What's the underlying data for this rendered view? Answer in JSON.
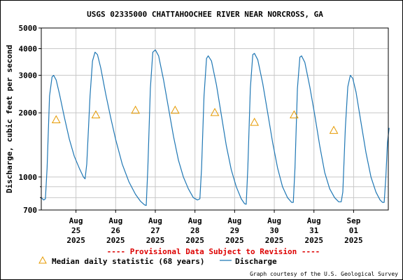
{
  "chart_data": {
    "type": "line",
    "title": "USGS 02335000 CHATTAHOOCHEE RIVER NEAR NORCROSS, GA",
    "ylabel": "Discharge, cubic feet per second",
    "xlabel": "",
    "yscale": "log",
    "ylim": [
      700,
      5000
    ],
    "xlim": [
      "2025-08-24 03:00",
      "2025-09-01 21:00"
    ],
    "grid": true,
    "y_ticks": [
      700,
      1000,
      2000,
      3000,
      4000,
      5000
    ],
    "y_tick_labels": [
      "700",
      "1000",
      "2000",
      "3000",
      "4000",
      "5000"
    ],
    "y_minor_ticks": [
      800,
      900
    ],
    "x_ticks": [
      {
        "date": "2025-08-25",
        "label": [
          "Aug",
          "25",
          "2025"
        ]
      },
      {
        "date": "2025-08-26",
        "label": [
          "Aug",
          "26",
          "2025"
        ]
      },
      {
        "date": "2025-08-27",
        "label": [
          "Aug",
          "27",
          "2025"
        ]
      },
      {
        "date": "2025-08-28",
        "label": [
          "Aug",
          "28",
          "2025"
        ]
      },
      {
        "date": "2025-08-29",
        "label": [
          "Aug",
          "29",
          "2025"
        ]
      },
      {
        "date": "2025-08-30",
        "label": [
          "Aug",
          "30",
          "2025"
        ]
      },
      {
        "date": "2025-08-31",
        "label": [
          "Aug",
          "31",
          "2025"
        ]
      },
      {
        "date": "2025-09-01",
        "label": [
          "Sep",
          "01",
          "2025"
        ]
      }
    ],
    "series": [
      {
        "name": "Discharge",
        "color": "#1f77b4",
        "marker": "line",
        "points": [
          [
            "2025-08-24 03:00",
            800
          ],
          [
            "2025-08-24 04:30",
            780
          ],
          [
            "2025-08-24 05:30",
            790
          ],
          [
            "2025-08-24 06:30",
            1100
          ],
          [
            "2025-08-24 08:00",
            2400
          ],
          [
            "2025-08-24 09:30",
            2950
          ],
          [
            "2025-08-24 10:30",
            3000
          ],
          [
            "2025-08-24 12:00",
            2850
          ],
          [
            "2025-08-24 14:00",
            2450
          ],
          [
            "2025-08-24 17:00",
            1900
          ],
          [
            "2025-08-24 20:00",
            1500
          ],
          [
            "2025-08-24 23:00",
            1250
          ],
          [
            "2025-08-25 02:00",
            1100
          ],
          [
            "2025-08-25 04:30",
            1000
          ],
          [
            "2025-08-25 05:30",
            980
          ],
          [
            "2025-08-25 06:30",
            1150
          ],
          [
            "2025-08-25 08:30",
            2400
          ],
          [
            "2025-08-25 10:00",
            3500
          ],
          [
            "2025-08-25 11:30",
            3850
          ],
          [
            "2025-08-25 13:00",
            3750
          ],
          [
            "2025-08-25 15:00",
            3250
          ],
          [
            "2025-08-25 18:00",
            2450
          ],
          [
            "2025-08-25 21:00",
            1900
          ],
          [
            "2025-08-26 00:00",
            1500
          ],
          [
            "2025-08-26 04:00",
            1150
          ],
          [
            "2025-08-26 08:00",
            950
          ],
          [
            "2025-08-26 12:00",
            830
          ],
          [
            "2025-08-26 15:00",
            770
          ],
          [
            "2025-08-26 17:30",
            740
          ],
          [
            "2025-08-26 18:30",
            735
          ],
          [
            "2025-08-26 19:30",
            1100
          ],
          [
            "2025-08-26 21:00",
            2600
          ],
          [
            "2025-08-26 22:30",
            3850
          ],
          [
            "2025-08-27 00:00",
            3950
          ],
          [
            "2025-08-27 02:00",
            3700
          ],
          [
            "2025-08-27 05:00",
            2850
          ],
          [
            "2025-08-27 08:00",
            2100
          ],
          [
            "2025-08-27 11:00",
            1550
          ],
          [
            "2025-08-27 14:00",
            1200
          ],
          [
            "2025-08-27 17:00",
            1000
          ],
          [
            "2025-08-27 20:00",
            880
          ],
          [
            "2025-08-27 23:00",
            800
          ],
          [
            "2025-08-28 01:30",
            780
          ],
          [
            "2025-08-28 03:00",
            790
          ],
          [
            "2025-08-28 04:00",
            1100
          ],
          [
            "2025-08-28 05:30",
            2400
          ],
          [
            "2025-08-28 07:00",
            3600
          ],
          [
            "2025-08-28 08:00",
            3700
          ],
          [
            "2025-08-28 10:00",
            3500
          ],
          [
            "2025-08-28 13:00",
            2700
          ],
          [
            "2025-08-28 16:00",
            1950
          ],
          [
            "2025-08-28 19:00",
            1400
          ],
          [
            "2025-08-28 22:00",
            1080
          ],
          [
            "2025-08-29 01:00",
            900
          ],
          [
            "2025-08-29 04:00",
            790
          ],
          [
            "2025-08-29 06:00",
            750
          ],
          [
            "2025-08-29 07:00",
            745
          ],
          [
            "2025-08-29 08:00",
            1100
          ],
          [
            "2025-08-29 09:30",
            2600
          ],
          [
            "2025-08-29 11:00",
            3750
          ],
          [
            "2025-08-29 12:00",
            3800
          ],
          [
            "2025-08-29 14:00",
            3550
          ],
          [
            "2025-08-29 17:00",
            2750
          ],
          [
            "2025-08-29 20:00",
            2000
          ],
          [
            "2025-08-29 23:00",
            1450
          ],
          [
            "2025-08-30 02:00",
            1100
          ],
          [
            "2025-08-30 05:00",
            900
          ],
          [
            "2025-08-30 08:00",
            800
          ],
          [
            "2025-08-30 10:30",
            760
          ],
          [
            "2025-08-30 11:30",
            760
          ],
          [
            "2025-08-30 12:30",
            1100
          ],
          [
            "2025-08-30 14:00",
            2600
          ],
          [
            "2025-08-30 15:30",
            3650
          ],
          [
            "2025-08-30 16:30",
            3700
          ],
          [
            "2025-08-30 18:30",
            3450
          ],
          [
            "2025-08-30 21:30",
            2650
          ],
          [
            "2025-08-31 00:30",
            1950
          ],
          [
            "2025-08-31 03:30",
            1400
          ],
          [
            "2025-08-31 06:30",
            1050
          ],
          [
            "2025-08-31 09:30",
            880
          ],
          [
            "2025-08-31 12:30",
            800
          ],
          [
            "2025-08-31 15:00",
            765
          ],
          [
            "2025-08-31 16:30",
            765
          ],
          [
            "2025-08-31 17:30",
            850
          ],
          [
            "2025-08-31 19:00",
            1700
          ],
          [
            "2025-08-31 20:30",
            2650
          ],
          [
            "2025-08-31 22:00",
            3000
          ],
          [
            "2025-08-31 23:30",
            2900
          ],
          [
            "2025-09-01 01:30",
            2500
          ],
          [
            "2025-09-01 04:30",
            1800
          ],
          [
            "2025-09-01 07:30",
            1300
          ],
          [
            "2025-09-01 10:30",
            1000
          ],
          [
            "2025-09-01 13:30",
            850
          ],
          [
            "2025-09-01 16:00",
            780
          ],
          [
            "2025-09-01 17:30",
            760
          ],
          [
            "2025-09-01 18:30",
            760
          ],
          [
            "2025-09-01 19:30",
            1000
          ],
          [
            "2025-09-01 20:30",
            1450
          ],
          [
            "2025-09-01 21:30",
            1700
          ]
        ]
      },
      {
        "name": "Median daily statistic (68 years)",
        "color": "#e69a00",
        "marker": "triangle",
        "points": [
          [
            "2025-08-24 12:00",
            1850
          ],
          [
            "2025-08-25 12:00",
            1950
          ],
          [
            "2025-08-26 12:00",
            2050
          ],
          [
            "2025-08-27 12:00",
            2050
          ],
          [
            "2025-08-28 12:00",
            2000
          ],
          [
            "2025-08-29 12:00",
            1800
          ],
          [
            "2025-08-30 12:00",
            1950
          ],
          [
            "2025-08-31 12:00",
            1650
          ]
        ]
      }
    ],
    "legend": {
      "placement": "bottom",
      "entries": [
        "Median daily statistic (68 years)",
        "Discharge"
      ]
    },
    "annotations": {
      "provisional": "---- Provisional Data Subject to Revision ----",
      "provisional_color": "#dd0000",
      "credit": "Graph courtesy of the U.S. Geological Survey"
    }
  }
}
